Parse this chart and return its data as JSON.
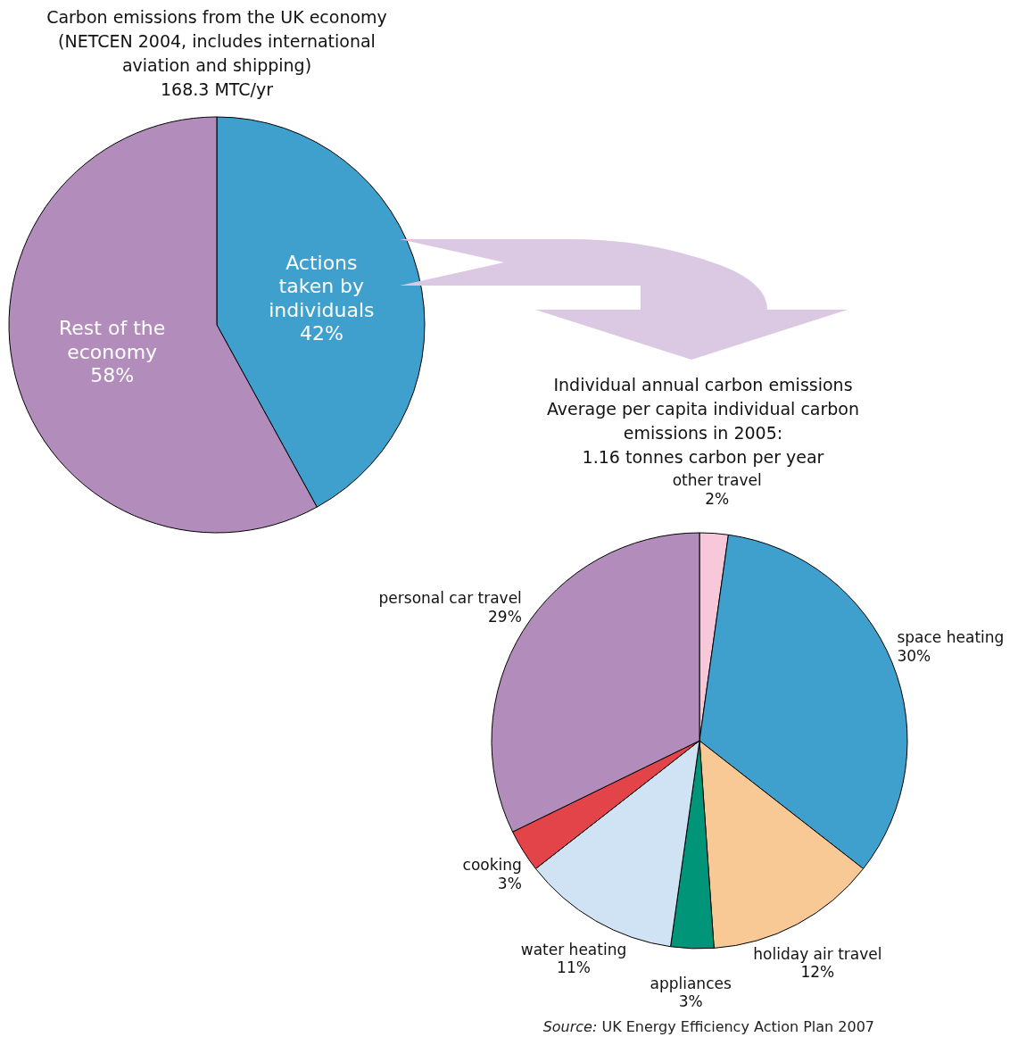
{
  "chart_data": [
    {
      "type": "pie",
      "title": "Carbon emissions from the UK economy\n(NETCEN 2004, includes international\naviation and shipping)\n168.3 MTC/yr",
      "categories": [
        "Actions taken by individuals",
        "Rest of the economy"
      ],
      "values": [
        42,
        58
      ],
      "colors": [
        "#3fa0cd",
        "#b28cba"
      ],
      "value_labels": [
        "42%",
        "58%"
      ]
    },
    {
      "type": "pie",
      "title": "Individual annual carbon emissions",
      "subtitle": "Average per capita individual carbon\nemissions in 2005:\n1.16 tonnes carbon per year",
      "categories": [
        "other travel",
        "space heating",
        "holiday air travel",
        "appliances",
        "water heating",
        "cooking",
        "personal car travel"
      ],
      "values": [
        2,
        30,
        12,
        3,
        11,
        3,
        29
      ],
      "colors": [
        "#f7c8d9",
        "#3fa0cd",
        "#f8c995",
        "#009479",
        "#d0e3f5",
        "#e24449",
        "#b28cba"
      ],
      "value_labels": [
        "2%",
        "30%",
        "12%",
        "3%",
        "11%",
        "3%",
        "29%"
      ],
      "annotations": [
        "Source: UK Energy Efficiency Action Plan 2007"
      ]
    }
  ]
}
